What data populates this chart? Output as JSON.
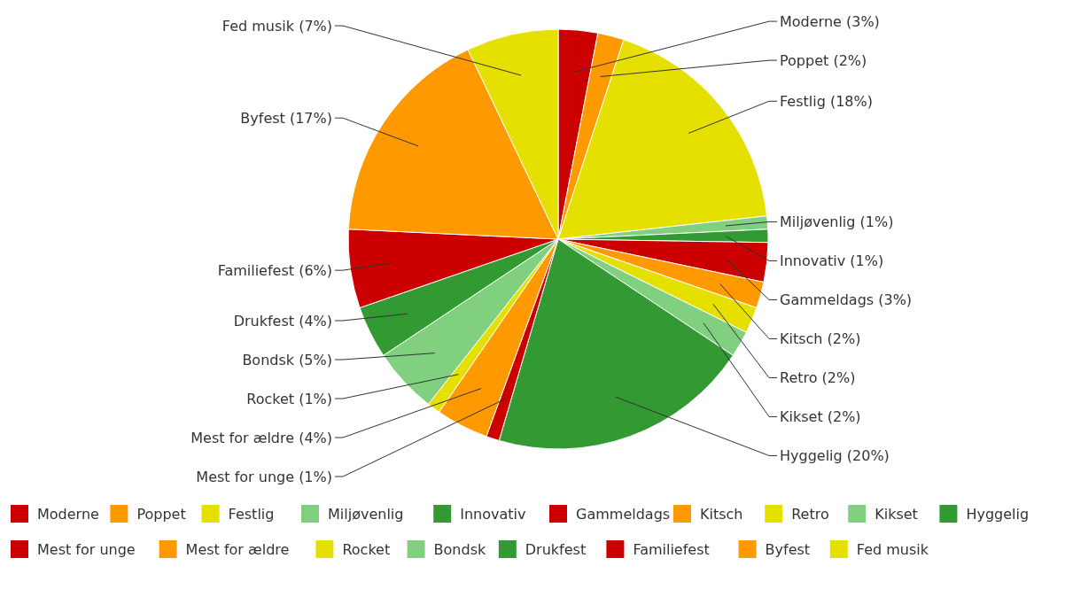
{
  "chart_data": {
    "type": "pie",
    "categories": [
      "Moderne",
      "Poppet",
      "Festlig",
      "Miljøvenlig",
      "Innovativ",
      "Gammeldags",
      "Kitsch",
      "Retro",
      "Kikset",
      "Hyggelig",
      "Mest for unge",
      "Mest for ældre",
      "Rocket",
      "Bondsk",
      "Drukfest",
      "Familiefest",
      "Byfest",
      "Fed musik"
    ],
    "values": [
      3,
      2,
      18,
      1,
      1,
      3,
      2,
      2,
      2,
      20,
      1,
      4,
      1,
      5,
      4,
      6,
      17,
      7
    ],
    "value_labels": [
      "(3%)",
      "(2%)",
      "(18%)",
      "(1%)",
      "(1%)",
      "(3%)",
      "(2%)",
      "(2%)",
      "(2%)",
      "(20%)",
      "(1%)",
      "(4%)",
      "(1%)",
      "(5%)",
      "(4%)",
      "(6%)",
      "(17%)",
      "(7%)"
    ],
    "colors": [
      "#cc0000",
      "#ff9900",
      "#e5e000",
      "#80d080",
      "#339933",
      "#cc0000",
      "#ff9900",
      "#e5e000",
      "#80d080",
      "#339933",
      "#cc0000",
      "#ff9900",
      "#e5e000",
      "#80d080",
      "#339933",
      "#cc0000",
      "#ff9900",
      "#e5e000"
    ],
    "legend": "bottom"
  }
}
